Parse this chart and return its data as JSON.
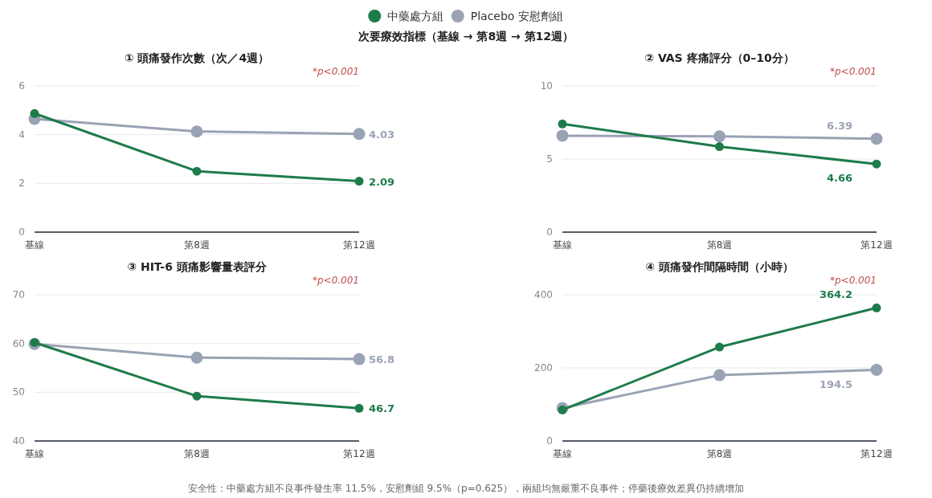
{
  "chart_data": [
    {
      "type": "other",
      "title": "次要療效指標（基線 → 第8週 → 第12週）",
      "annotations": [
        "安全性：中藥處方組不良事件發生率 11.5%，安慰劑組 9.5%（p=0.625），兩組均無嚴重不良事件；停藥後療效差異仍持續增加"
      ]
    },
    {
      "type": "line",
      "title": "① 頭痛發作次數（次／4週）",
      "categories": [
        "基線",
        "第8週",
        "第12週"
      ],
      "ylim": [
        0,
        6
      ],
      "yticks": [
        0,
        2,
        4,
        6
      ],
      "grid": "y",
      "legend": "top",
      "marker": "circle",
      "line_style": "solid",
      "annotations": [
        "*p<0.001"
      ],
      "series": [
        {
          "name": "Placebo 安慰劑組",
          "color": "#9aa3b5",
          "values": [
            4.65,
            4.13,
            4.03
          ],
          "value_labels": [
            null,
            null,
            "4.03"
          ]
        },
        {
          "name": "中藥處方組",
          "color": "#1e7b4a",
          "values": [
            4.87,
            2.5,
            2.09
          ],
          "value_labels": [
            null,
            null,
            "2.09"
          ]
        }
      ]
    },
    {
      "type": "line",
      "title": "② VAS 疼痛評分（0–10分）",
      "categories": [
        "基線",
        "第8週",
        "第12週"
      ],
      "ylim": [
        0,
        10
      ],
      "yticks": [
        0,
        5,
        10
      ],
      "grid": "y",
      "marker": "circle",
      "line_style": "solid",
      "annotations": [
        "*p<0.001"
      ],
      "series": [
        {
          "name": "Placebo 安慰劑組",
          "color": "#9aa3b5",
          "values": [
            6.6,
            6.55,
            6.39
          ],
          "value_labels": [
            null,
            null,
            "6.39"
          ]
        },
        {
          "name": "中藥處方組",
          "color": "#1e7b4a",
          "values": [
            7.4,
            5.85,
            4.66
          ],
          "value_labels": [
            null,
            null,
            "4.66"
          ]
        }
      ]
    },
    {
      "type": "line",
      "title": "③ HIT-6 頭痛影響量表評分",
      "categories": [
        "基線",
        "第8週",
        "第12週"
      ],
      "ylim": [
        40,
        70
      ],
      "yticks": [
        40,
        50,
        60,
        70
      ],
      "grid": "y",
      "marker": "circle",
      "line_style": "solid",
      "annotations": [
        "*p<0.001"
      ],
      "series": [
        {
          "name": "Placebo 安慰劑組",
          "color": "#9aa3b5",
          "values": [
            59.9,
            57.1,
            56.8
          ],
          "value_labels": [
            null,
            null,
            "56.8"
          ]
        },
        {
          "name": "中藥處方組",
          "color": "#1e7b4a",
          "values": [
            60.2,
            49.2,
            46.7
          ],
          "value_labels": [
            null,
            null,
            "46.7"
          ]
        }
      ]
    },
    {
      "type": "line",
      "title": "④ 頭痛發作間隔時間（小時）",
      "categories": [
        "基線",
        "第8週",
        "第12週"
      ],
      "ylim": [
        0,
        400
      ],
      "yticks": [
        0,
        200,
        400
      ],
      "grid": "y",
      "marker": "circle",
      "line_style": "solid",
      "annotations": [
        "*p<0.001"
      ],
      "series": [
        {
          "name": "Placebo 安慰劑組",
          "color": "#9aa3b5",
          "values": [
            90,
            180,
            194.5
          ],
          "value_labels": [
            null,
            null,
            "194.5"
          ]
        },
        {
          "name": "中藥處方組",
          "color": "#1e7b4a",
          "values": [
            85,
            257,
            364.2
          ],
          "value_labels": [
            null,
            null,
            "364.2"
          ]
        }
      ]
    }
  ]
}
